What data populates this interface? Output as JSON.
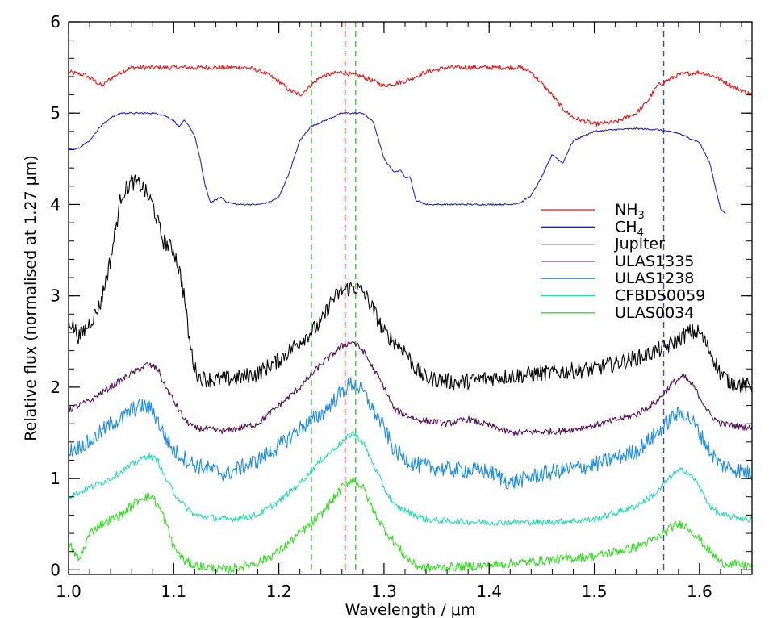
{
  "chart_data": {
    "type": "line",
    "xlabel": "Wavelength / μm",
    "ylabel": "Relative flux (normalised at 1.27 μm)",
    "xlim": [
      1.0,
      1.65
    ],
    "ylim": [
      -0.05,
      6.0
    ],
    "xticks": [
      1.0,
      1.1,
      1.2,
      1.3,
      1.4,
      1.5,
      1.6
    ],
    "xtick_labels": [
      "1.0",
      "1.1",
      "1.2",
      "1.3",
      "1.4",
      "1.5",
      "1.6"
    ],
    "yticks": [
      0,
      1,
      2,
      3,
      4,
      5,
      6
    ],
    "ytick_labels": [
      "0",
      "1",
      "2",
      "3",
      "4",
      "5",
      "6"
    ],
    "grid": false,
    "legend_position": "right",
    "vlines": [
      {
        "x": 1.231,
        "color": "#33cc33"
      },
      {
        "x": 1.263,
        "color": "#ee2222"
      },
      {
        "x": 1.273,
        "color": "#33cc33"
      },
      {
        "x": 1.566,
        "color": "#4444cc"
      }
    ],
    "series": [
      {
        "name": "NH3",
        "label_main": "NH",
        "label_sub": "3",
        "color": "#ee1111",
        "noise": 0.025,
        "points": [
          [
            1.0,
            5.45
          ],
          [
            1.015,
            5.42
          ],
          [
            1.025,
            5.35
          ],
          [
            1.032,
            5.3
          ],
          [
            1.04,
            5.38
          ],
          [
            1.05,
            5.45
          ],
          [
            1.06,
            5.5
          ],
          [
            1.08,
            5.5
          ],
          [
            1.1,
            5.5
          ],
          [
            1.14,
            5.5
          ],
          [
            1.17,
            5.5
          ],
          [
            1.185,
            5.45
          ],
          [
            1.2,
            5.35
          ],
          [
            1.21,
            5.25
          ],
          [
            1.22,
            5.2
          ],
          [
            1.23,
            5.3
          ],
          [
            1.24,
            5.4
          ],
          [
            1.25,
            5.43
          ],
          [
            1.26,
            5.45
          ],
          [
            1.27,
            5.42
          ],
          [
            1.28,
            5.4
          ],
          [
            1.29,
            5.35
          ],
          [
            1.3,
            5.3
          ],
          [
            1.32,
            5.35
          ],
          [
            1.34,
            5.45
          ],
          [
            1.36,
            5.5
          ],
          [
            1.4,
            5.5
          ],
          [
            1.43,
            5.5
          ],
          [
            1.44,
            5.45
          ],
          [
            1.46,
            5.2
          ],
          [
            1.47,
            5.05
          ],
          [
            1.48,
            4.95
          ],
          [
            1.5,
            4.88
          ],
          [
            1.52,
            4.9
          ],
          [
            1.54,
            5.0
          ],
          [
            1.55,
            5.12
          ],
          [
            1.56,
            5.3
          ],
          [
            1.58,
            5.42
          ],
          [
            1.6,
            5.45
          ],
          [
            1.615,
            5.4
          ],
          [
            1.63,
            5.3
          ],
          [
            1.65,
            5.2
          ]
        ]
      },
      {
        "name": "CH4",
        "label_main": "CH",
        "label_sub": "4",
        "color": "#2222cc",
        "noise": 0.008,
        "points": [
          [
            1.0,
            4.6
          ],
          [
            1.01,
            4.62
          ],
          [
            1.02,
            4.7
          ],
          [
            1.03,
            4.85
          ],
          [
            1.04,
            4.95
          ],
          [
            1.05,
            5.0
          ],
          [
            1.08,
            5.0
          ],
          [
            1.09,
            4.98
          ],
          [
            1.1,
            4.92
          ],
          [
            1.105,
            4.85
          ],
          [
            1.11,
            4.92
          ],
          [
            1.115,
            4.85
          ],
          [
            1.12,
            4.75
          ],
          [
            1.125,
            4.5
          ],
          [
            1.13,
            4.2
          ],
          [
            1.135,
            4.02
          ],
          [
            1.14,
            4.05
          ],
          [
            1.145,
            4.08
          ],
          [
            1.15,
            4.03
          ],
          [
            1.16,
            4.0
          ],
          [
            1.18,
            4.0
          ],
          [
            1.19,
            4.02
          ],
          [
            1.2,
            4.08
          ],
          [
            1.21,
            4.35
          ],
          [
            1.22,
            4.7
          ],
          [
            1.23,
            4.85
          ],
          [
            1.24,
            4.9
          ],
          [
            1.25,
            4.95
          ],
          [
            1.26,
            5.0
          ],
          [
            1.28,
            5.0
          ],
          [
            1.29,
            4.9
          ],
          [
            1.3,
            4.5
          ],
          [
            1.31,
            4.35
          ],
          [
            1.315,
            4.38
          ],
          [
            1.32,
            4.3
          ],
          [
            1.325,
            4.3
          ],
          [
            1.33,
            4.05
          ],
          [
            1.34,
            4.0
          ],
          [
            1.36,
            4.0
          ],
          [
            1.4,
            4.0
          ],
          [
            1.42,
            4.0
          ],
          [
            1.43,
            4.02
          ],
          [
            1.44,
            4.1
          ],
          [
            1.45,
            4.3
          ],
          [
            1.46,
            4.55
          ],
          [
            1.465,
            4.5
          ],
          [
            1.47,
            4.45
          ],
          [
            1.475,
            4.58
          ],
          [
            1.48,
            4.7
          ],
          [
            1.5,
            4.8
          ],
          [
            1.52,
            4.82
          ],
          [
            1.54,
            4.83
          ],
          [
            1.56,
            4.82
          ],
          [
            1.58,
            4.78
          ],
          [
            1.6,
            4.68
          ],
          [
            1.61,
            4.45
          ],
          [
            1.615,
            4.2
          ],
          [
            1.62,
            3.95
          ],
          [
            1.625,
            3.9
          ]
        ]
      },
      {
        "name": "Jupiter",
        "label_main": "Jupiter",
        "label_sub": "",
        "color": "#000000",
        "noise": 0.09,
        "points": [
          [
            1.0,
            2.75
          ],
          [
            1.01,
            2.55
          ],
          [
            1.02,
            2.7
          ],
          [
            1.03,
            2.9
          ],
          [
            1.04,
            3.4
          ],
          [
            1.05,
            4.1
          ],
          [
            1.06,
            4.25
          ],
          [
            1.07,
            4.2
          ],
          [
            1.08,
            4.0
          ],
          [
            1.09,
            3.6
          ],
          [
            1.1,
            3.5
          ],
          [
            1.105,
            3.3
          ],
          [
            1.11,
            3.0
          ],
          [
            1.115,
            2.5
          ],
          [
            1.12,
            2.2
          ],
          [
            1.125,
            2.1
          ],
          [
            1.14,
            2.08
          ],
          [
            1.16,
            2.1
          ],
          [
            1.18,
            2.15
          ],
          [
            1.2,
            2.3
          ],
          [
            1.21,
            2.4
          ],
          [
            1.22,
            2.5
          ],
          [
            1.23,
            2.6
          ],
          [
            1.24,
            2.7
          ],
          [
            1.25,
            2.95
          ],
          [
            1.26,
            3.05
          ],
          [
            1.27,
            3.1
          ],
          [
            1.28,
            3.05
          ],
          [
            1.29,
            2.85
          ],
          [
            1.3,
            2.6
          ],
          [
            1.31,
            2.5
          ],
          [
            1.32,
            2.4
          ],
          [
            1.33,
            2.2
          ],
          [
            1.34,
            2.1
          ],
          [
            1.37,
            2.05
          ],
          [
            1.4,
            2.1
          ],
          [
            1.45,
            2.15
          ],
          [
            1.5,
            2.2
          ],
          [
            1.55,
            2.35
          ],
          [
            1.57,
            2.45
          ],
          [
            1.59,
            2.6
          ],
          [
            1.6,
            2.6
          ],
          [
            1.61,
            2.4
          ],
          [
            1.62,
            2.15
          ],
          [
            1.63,
            2.05
          ],
          [
            1.65,
            2.0
          ]
        ]
      },
      {
        "name": "ULAS1335",
        "label_main": "ULAS1335",
        "label_sub": "",
        "color": "#551155",
        "noise": 0.035,
        "points": [
          [
            1.0,
            1.75
          ],
          [
            1.02,
            1.85
          ],
          [
            1.04,
            2.0
          ],
          [
            1.06,
            2.15
          ],
          [
            1.075,
            2.25
          ],
          [
            1.085,
            2.2
          ],
          [
            1.09,
            2.05
          ],
          [
            1.1,
            1.85
          ],
          [
            1.11,
            1.65
          ],
          [
            1.12,
            1.55
          ],
          [
            1.15,
            1.52
          ],
          [
            1.18,
            1.6
          ],
          [
            1.2,
            1.8
          ],
          [
            1.22,
            2.0
          ],
          [
            1.24,
            2.25
          ],
          [
            1.26,
            2.45
          ],
          [
            1.27,
            2.5
          ],
          [
            1.28,
            2.4
          ],
          [
            1.29,
            2.2
          ],
          [
            1.3,
            2.0
          ],
          [
            1.31,
            1.75
          ],
          [
            1.33,
            1.65
          ],
          [
            1.36,
            1.6
          ],
          [
            1.38,
            1.65
          ],
          [
            1.4,
            1.58
          ],
          [
            1.42,
            1.5
          ],
          [
            1.47,
            1.52
          ],
          [
            1.5,
            1.58
          ],
          [
            1.54,
            1.7
          ],
          [
            1.56,
            1.85
          ],
          [
            1.575,
            2.05
          ],
          [
            1.585,
            2.12
          ],
          [
            1.595,
            2.0
          ],
          [
            1.61,
            1.7
          ],
          [
            1.62,
            1.6
          ],
          [
            1.65,
            1.55
          ]
        ]
      },
      {
        "name": "ULAS1238",
        "label_main": "ULAS1238",
        "label_sub": "",
        "color": "#1a8ce6",
        "noise": 0.09,
        "points": [
          [
            1.0,
            1.3
          ],
          [
            1.02,
            1.4
          ],
          [
            1.03,
            1.5
          ],
          [
            1.04,
            1.6
          ],
          [
            1.05,
            1.65
          ],
          [
            1.06,
            1.75
          ],
          [
            1.07,
            1.8
          ],
          [
            1.08,
            1.75
          ],
          [
            1.09,
            1.5
          ],
          [
            1.1,
            1.3
          ],
          [
            1.12,
            1.15
          ],
          [
            1.15,
            1.05
          ],
          [
            1.18,
            1.2
          ],
          [
            1.2,
            1.35
          ],
          [
            1.22,
            1.55
          ],
          [
            1.24,
            1.7
          ],
          [
            1.26,
            1.95
          ],
          [
            1.27,
            2.05
          ],
          [
            1.28,
            1.95
          ],
          [
            1.29,
            1.75
          ],
          [
            1.3,
            1.55
          ],
          [
            1.31,
            1.3
          ],
          [
            1.33,
            1.15
          ],
          [
            1.36,
            1.1
          ],
          [
            1.4,
            1.08
          ],
          [
            1.42,
            0.95
          ],
          [
            1.45,
            1.05
          ],
          [
            1.5,
            1.15
          ],
          [
            1.54,
            1.3
          ],
          [
            1.56,
            1.5
          ],
          [
            1.575,
            1.68
          ],
          [
            1.585,
            1.72
          ],
          [
            1.595,
            1.6
          ],
          [
            1.61,
            1.3
          ],
          [
            1.62,
            1.15
          ],
          [
            1.65,
            1.05
          ]
        ]
      },
      {
        "name": "CFBDS0059",
        "label_main": "CFBDS0059",
        "label_sub": "",
        "color": "#22ddaa",
        "noise": 0.035,
        "points": [
          [
            1.0,
            0.8
          ],
          [
            1.02,
            0.9
          ],
          [
            1.04,
            1.0
          ],
          [
            1.06,
            1.15
          ],
          [
            1.075,
            1.25
          ],
          [
            1.085,
            1.2
          ],
          [
            1.09,
            1.05
          ],
          [
            1.1,
            0.85
          ],
          [
            1.11,
            0.7
          ],
          [
            1.12,
            0.6
          ],
          [
            1.15,
            0.55
          ],
          [
            1.18,
            0.6
          ],
          [
            1.2,
            0.75
          ],
          [
            1.22,
            0.95
          ],
          [
            1.24,
            1.2
          ],
          [
            1.26,
            1.4
          ],
          [
            1.27,
            1.5
          ],
          [
            1.28,
            1.4
          ],
          [
            1.29,
            1.15
          ],
          [
            1.3,
            0.9
          ],
          [
            1.31,
            0.7
          ],
          [
            1.33,
            0.6
          ],
          [
            1.34,
            0.55
          ],
          [
            1.35,
            0.54
          ],
          [
            1.4,
            0.52
          ],
          [
            1.45,
            0.52
          ],
          [
            1.5,
            0.55
          ],
          [
            1.54,
            0.7
          ],
          [
            1.56,
            0.85
          ],
          [
            1.575,
            1.05
          ],
          [
            1.585,
            1.1
          ],
          [
            1.595,
            1.0
          ],
          [
            1.61,
            0.7
          ],
          [
            1.62,
            0.6
          ],
          [
            1.65,
            0.55
          ]
        ]
      },
      {
        "name": "ULAS0034",
        "label_main": "ULAS0034",
        "label_sub": "",
        "color": "#33dd22",
        "noise": 0.05,
        "points": [
          [
            1.0,
            0.3
          ],
          [
            1.01,
            0.1
          ],
          [
            1.02,
            0.4
          ],
          [
            1.03,
            0.5
          ],
          [
            1.04,
            0.55
          ],
          [
            1.05,
            0.6
          ],
          [
            1.06,
            0.7
          ],
          [
            1.07,
            0.8
          ],
          [
            1.08,
            0.8
          ],
          [
            1.09,
            0.6
          ],
          [
            1.1,
            0.25
          ],
          [
            1.11,
            0.1
          ],
          [
            1.12,
            0.05
          ],
          [
            1.15,
            0.0
          ],
          [
            1.18,
            0.08
          ],
          [
            1.2,
            0.2
          ],
          [
            1.22,
            0.4
          ],
          [
            1.24,
            0.6
          ],
          [
            1.26,
            0.9
          ],
          [
            1.27,
            1.0
          ],
          [
            1.28,
            0.9
          ],
          [
            1.29,
            0.65
          ],
          [
            1.3,
            0.45
          ],
          [
            1.31,
            0.3
          ],
          [
            1.32,
            0.15
          ],
          [
            1.33,
            0.05
          ],
          [
            1.34,
            0.02
          ],
          [
            1.36,
            0.03
          ],
          [
            1.4,
            0.05
          ],
          [
            1.45,
            0.1
          ],
          [
            1.5,
            0.15
          ],
          [
            1.54,
            0.25
          ],
          [
            1.56,
            0.35
          ],
          [
            1.575,
            0.48
          ],
          [
            1.585,
            0.5
          ],
          [
            1.595,
            0.4
          ],
          [
            1.61,
            0.2
          ],
          [
            1.62,
            0.08
          ],
          [
            1.65,
            0.04
          ]
        ]
      }
    ]
  }
}
